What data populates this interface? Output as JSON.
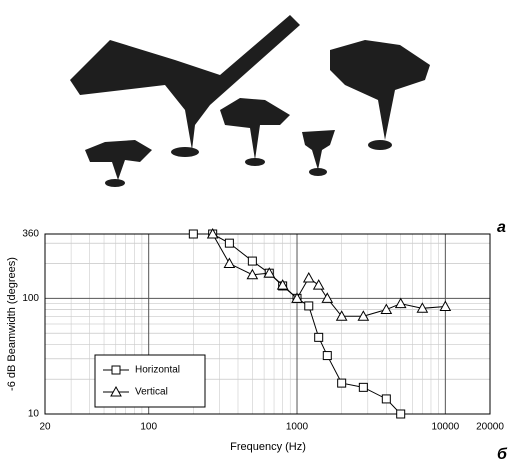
{
  "chart_data": {
    "type": "line",
    "x_label": "Frequency (Hz)",
    "y_label": "-6 dB Beamwidth (degrees)",
    "log_x": true,
    "log_y": true,
    "grid": true,
    "legend": "lower left",
    "xlim": [
      20,
      20000
    ],
    "xticks": [
      20,
      100,
      1000,
      10000,
      20000
    ],
    "ylim": [
      10,
      360
    ],
    "yticks": [
      10,
      100,
      360
    ],
    "series": [
      {
        "name": "Horizontal",
        "marker": "square",
        "color": "#000000",
        "x": [
          200,
          270,
          350,
          500,
          650,
          800,
          1000,
          1200,
          1400,
          1600,
          2000,
          2800,
          4000,
          5000
        ],
        "values": [
          360,
          360,
          300,
          210,
          165,
          128,
          100,
          86,
          46,
          32,
          18.5,
          17,
          13.5,
          10
        ]
      },
      {
        "name": "Vertical",
        "marker": "triangle",
        "color": "#000000",
        "x": [
          270,
          350,
          500,
          650,
          800,
          1000,
          1200,
          1400,
          1600,
          2000,
          2800,
          4000,
          5000,
          7000,
          10000
        ],
        "values": [
          360,
          200,
          160,
          165,
          130,
          100,
          150,
          130,
          100,
          70,
          70,
          80,
          90,
          82,
          85
        ]
      }
    ]
  },
  "figure": {
    "panel_labels": [
      "a",
      "б"
    ]
  }
}
